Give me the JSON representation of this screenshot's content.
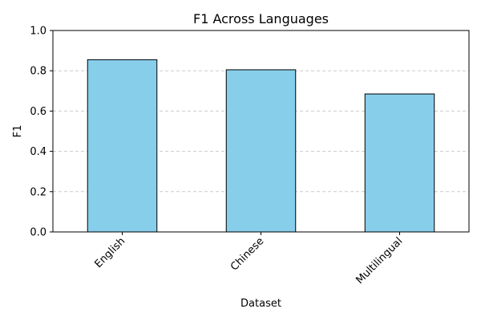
{
  "chart_data": {
    "type": "bar",
    "title": "F1 Across Languages",
    "xlabel": "Dataset",
    "ylabel": "F1",
    "categories": [
      "English",
      "Chinese",
      "Multilingual"
    ],
    "values": [
      0.855,
      0.805,
      0.685
    ],
    "ylim": [
      0,
      1.0
    ],
    "yticks": [
      "0.0",
      "0.2",
      "0.4",
      "0.6",
      "0.8",
      "1.0"
    ],
    "grid": "y-dashed",
    "bar_color": "#87CEEB",
    "bar_edge_color": "#000000",
    "grid_color": "#cccccc"
  }
}
